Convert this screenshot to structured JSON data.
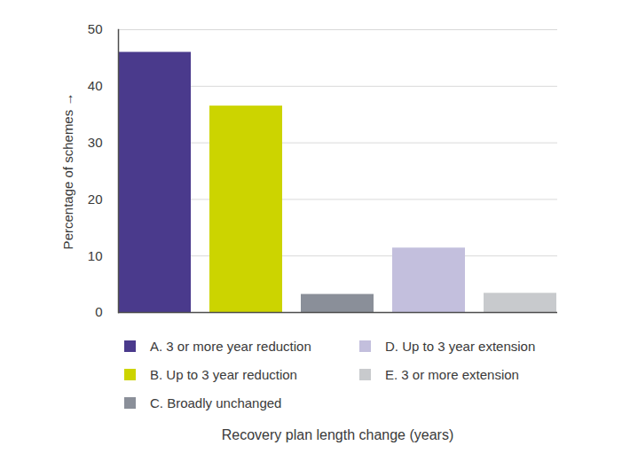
{
  "chart_data": {
    "type": "bar",
    "categories": [
      "A. 3 or more year reduction",
      "B. Up to 3 year reduction",
      "C. Broadly unchanged",
      "D. Up to 3 year extension",
      "E. 3 or more extension"
    ],
    "values": [
      46,
      36.5,
      3.2,
      11.4,
      3.4
    ],
    "colors": [
      "#4a3a8c",
      "#ccd400",
      "#8a8f99",
      "#c3bfdd",
      "#c8cacd"
    ],
    "y_label": "Percentage of schemes",
    "x_label": "Recovery plan length change (years)",
    "ylim": [
      0,
      50
    ],
    "yticks": [
      0,
      10,
      20,
      30,
      40,
      50
    ],
    "grid": true,
    "legend": "bottom",
    "tick_labels": "y"
  }
}
